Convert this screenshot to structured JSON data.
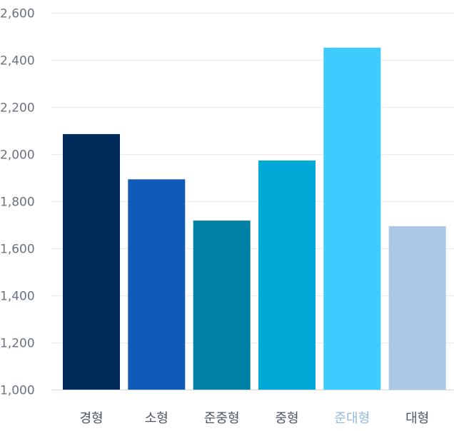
{
  "chart_data": {
    "type": "bar",
    "title": "",
    "xlabel": "",
    "ylabel": "",
    "categories": [
      "경형",
      "소형",
      "준중형",
      "중형",
      "준대형",
      "대형"
    ],
    "values": [
      2085,
      1893,
      1718,
      1973,
      2452,
      1694
    ],
    "colors": [
      "#012b5b",
      "#0f5bb7",
      "#0180a6",
      "#01a9d6",
      "#3ecbff",
      "#a9c9e6"
    ],
    "highlight_index": 4,
    "highlight_label_color": "#93b9da",
    "label_color": "#4b5563",
    "ylim": [
      1000,
      2600
    ],
    "yticks": [
      1000,
      1200,
      1400,
      1600,
      1800,
      2000,
      2200,
      2400,
      2600
    ],
    "ytick_labels": [
      "1,000",
      "1,200",
      "1,400",
      "1,600",
      "1,800",
      "2,000",
      "2,200",
      "2,400",
      "2,600"
    ],
    "grid": true,
    "legend": "none"
  }
}
